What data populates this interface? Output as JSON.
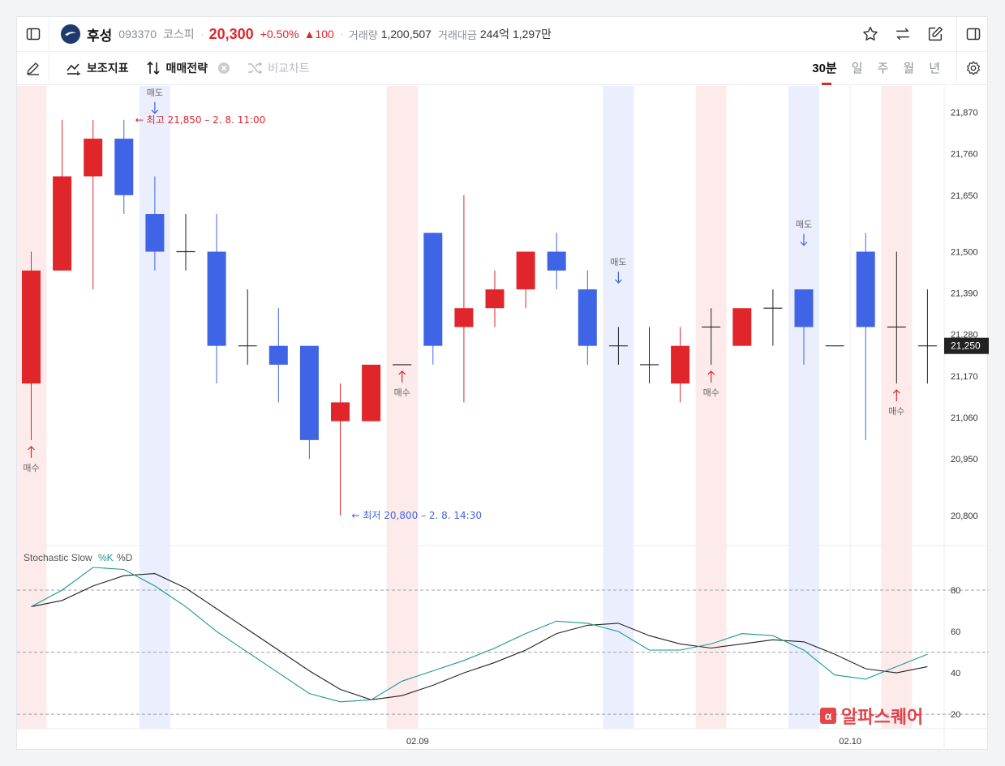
{
  "header": {
    "stock_name": "후성",
    "code": "093370",
    "market": "코스피",
    "price": "20,300",
    "change_pct": "+0.50%",
    "change_abs": "▲100",
    "volume_label": "거래량",
    "volume": "1,200,507",
    "amount_label": "거래대금",
    "amount": "244억 1,297만"
  },
  "toolbar": {
    "indicators_label": "보조지표",
    "strategy_label": "매매전략",
    "compare_label": "비교차트",
    "periods": [
      "30분",
      "일",
      "주",
      "월",
      "년"
    ],
    "active_period": "30분"
  },
  "colors": {
    "up": "#e0262b",
    "down": "#4064e6",
    "buy_band": "#fde8e8",
    "sell_band": "#e8ebfd",
    "k_line": "#1a9a8e",
    "d_line": "#222222"
  },
  "chart_data": {
    "type": "candlestick",
    "x_labels": [
      {
        "index": 13,
        "label": "02.09"
      },
      {
        "index": 27,
        "label": "02.10"
      }
    ],
    "y_ticks": [
      "21,870",
      "21,760",
      "21,650",
      "21,500",
      "21,390",
      "21,280",
      "21,170",
      "21,060",
      "20,950",
      "20,800"
    ],
    "y_tick_values": [
      21870,
      21760,
      21650,
      21500,
      21390,
      21280,
      21170,
      21060,
      20950,
      20800
    ],
    "ylim": [
      20720,
      21940
    ],
    "current_price_label": "21,250",
    "current_price": 21250,
    "candles": [
      {
        "o": 21150,
        "h": 21500,
        "l": 21000,
        "c": 21450
      },
      {
        "o": 21450,
        "h": 21850,
        "l": 21450,
        "c": 21700
      },
      {
        "o": 21700,
        "h": 21850,
        "l": 21400,
        "c": 21800
      },
      {
        "o": 21800,
        "h": 21850,
        "l": 21600,
        "c": 21650
      },
      {
        "o": 21600,
        "h": 21700,
        "l": 21450,
        "c": 21500
      },
      {
        "o": 21500,
        "h": 21600,
        "l": 21450,
        "c": 21500
      },
      {
        "o": 21500,
        "h": 21600,
        "l": 21150,
        "c": 21250
      },
      {
        "o": 21250,
        "h": 21400,
        "l": 21200,
        "c": 21250
      },
      {
        "o": 21250,
        "h": 21350,
        "l": 21100,
        "c": 21200
      },
      {
        "o": 21250,
        "h": 21250,
        "l": 20950,
        "c": 21000
      },
      {
        "o": 21050,
        "h": 21150,
        "l": 20800,
        "c": 21100
      },
      {
        "o": 21050,
        "h": 21200,
        "l": 21050,
        "c": 21200
      },
      {
        "o": 21200,
        "h": 21200,
        "l": 21200,
        "c": 21200
      },
      {
        "o": 21550,
        "h": 21550,
        "l": 21200,
        "c": 21250
      },
      {
        "o": 21300,
        "h": 21650,
        "l": 21100,
        "c": 21350
      },
      {
        "o": 21350,
        "h": 21450,
        "l": 21300,
        "c": 21400
      },
      {
        "o": 21400,
        "h": 21500,
        "l": 21350,
        "c": 21500
      },
      {
        "o": 21500,
        "h": 21550,
        "l": 21400,
        "c": 21450
      },
      {
        "o": 21400,
        "h": 21450,
        "l": 21200,
        "c": 21250
      },
      {
        "o": 21250,
        "h": 21300,
        "l": 21200,
        "c": 21250
      },
      {
        "o": 21200,
        "h": 21300,
        "l": 21150,
        "c": 21200
      },
      {
        "o": 21150,
        "h": 21300,
        "l": 21100,
        "c": 21250
      },
      {
        "o": 21300,
        "h": 21350,
        "l": 21200,
        "c": 21300
      },
      {
        "o": 21250,
        "h": 21350,
        "l": 21250,
        "c": 21350
      },
      {
        "o": 21350,
        "h": 21400,
        "l": 21250,
        "c": 21350
      },
      {
        "o": 21400,
        "h": 21400,
        "l": 21200,
        "c": 21300
      },
      {
        "o": 21250,
        "h": 21250,
        "l": 21250,
        "c": 21250
      },
      {
        "o": 21500,
        "h": 21550,
        "l": 21000,
        "c": 21300
      },
      {
        "o": 21300,
        "h": 21500,
        "l": 21150,
        "c": 21300
      },
      {
        "o": 21250,
        "h": 21400,
        "l": 21150,
        "c": 21250
      }
    ],
    "bands": [
      {
        "index": 0,
        "kind": "buy"
      },
      {
        "index": 4,
        "kind": "sell"
      },
      {
        "index": 12,
        "kind": "buy"
      },
      {
        "index": 19,
        "kind": "sell"
      },
      {
        "index": 22,
        "kind": "buy"
      },
      {
        "index": 25,
        "kind": "sell"
      },
      {
        "index": 28,
        "kind": "buy"
      }
    ],
    "signals": [
      {
        "index": 0,
        "kind": "buy",
        "label": "매수",
        "at": 21000
      },
      {
        "index": 4,
        "kind": "sell",
        "label": "매도",
        "at": 21850
      },
      {
        "index": 12,
        "kind": "buy",
        "label": "매수",
        "at": 21200
      },
      {
        "index": 19,
        "kind": "sell",
        "label": "매도",
        "at": 21400
      },
      {
        "index": 22,
        "kind": "buy",
        "label": "매수",
        "at": 21200
      },
      {
        "index": 25,
        "kind": "sell",
        "label": "매도",
        "at": 21500
      },
      {
        "index": 28,
        "kind": "buy",
        "label": "매수",
        "at": 21150
      }
    ],
    "annotations": {
      "high": {
        "index": 3,
        "value": 21850,
        "text": "← 최고 21,850 – 2. 8. 11:00"
      },
      "low": {
        "index": 10,
        "value": 20800,
        "text": "← 최저 20,800 – 2. 8. 14:30"
      }
    },
    "stochastic": {
      "title": "Stochastic Slow",
      "k_label": "%K",
      "d_label": "%D",
      "ylim": [
        13,
        100
      ],
      "y_ticks": [
        "80",
        "60",
        "40",
        "20"
      ],
      "y_tick_values": [
        80,
        60,
        40,
        20
      ],
      "guide_lines": [
        80,
        50,
        20
      ],
      "k": [
        72,
        80,
        91,
        90,
        82,
        72,
        60,
        50,
        40,
        30,
        26,
        27,
        36,
        41,
        46,
        52,
        59,
        65,
        64,
        60,
        51,
        51,
        54,
        59,
        58,
        51,
        39,
        37,
        43,
        49
      ],
      "d": [
        72,
        75,
        82,
        87,
        88,
        81,
        71,
        61,
        51,
        41,
        32,
        27,
        29,
        34,
        40,
        45,
        51,
        59,
        63,
        64,
        58,
        54,
        52,
        54,
        56,
        55,
        49,
        42,
        40,
        43
      ]
    }
  }
}
